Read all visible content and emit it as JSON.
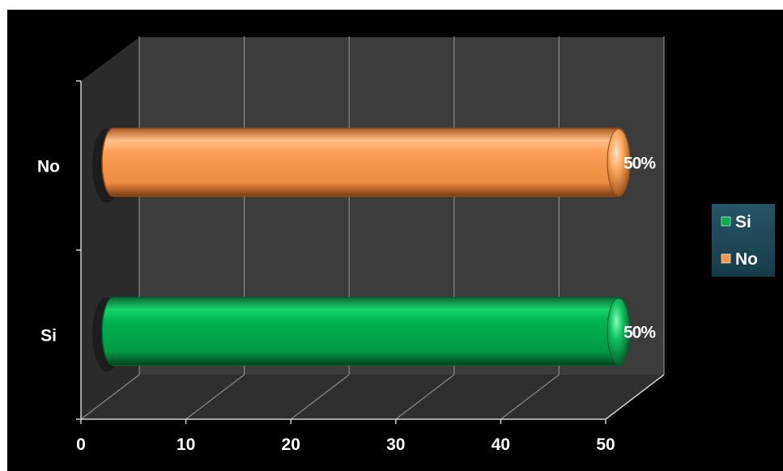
{
  "chart_data": {
    "type": "bar",
    "orientation": "horizontal",
    "style": "3d-cylinder",
    "categories": [
      "Si",
      "No"
    ],
    "values": [
      50,
      50
    ],
    "data_labels": [
      "50%",
      "50%"
    ],
    "colors": [
      "#00b050",
      "#f79646"
    ],
    "xlim": [
      0,
      50
    ],
    "x_ticks": [
      "0",
      "10",
      "20",
      "30",
      "40",
      "50"
    ],
    "grid": true,
    "legend_position": "right",
    "legend": [
      {
        "label": "Si",
        "color": "#00b050"
      },
      {
        "label": "No",
        "color": "#f79646"
      }
    ],
    "title": "",
    "xlabel": "",
    "ylabel": ""
  }
}
